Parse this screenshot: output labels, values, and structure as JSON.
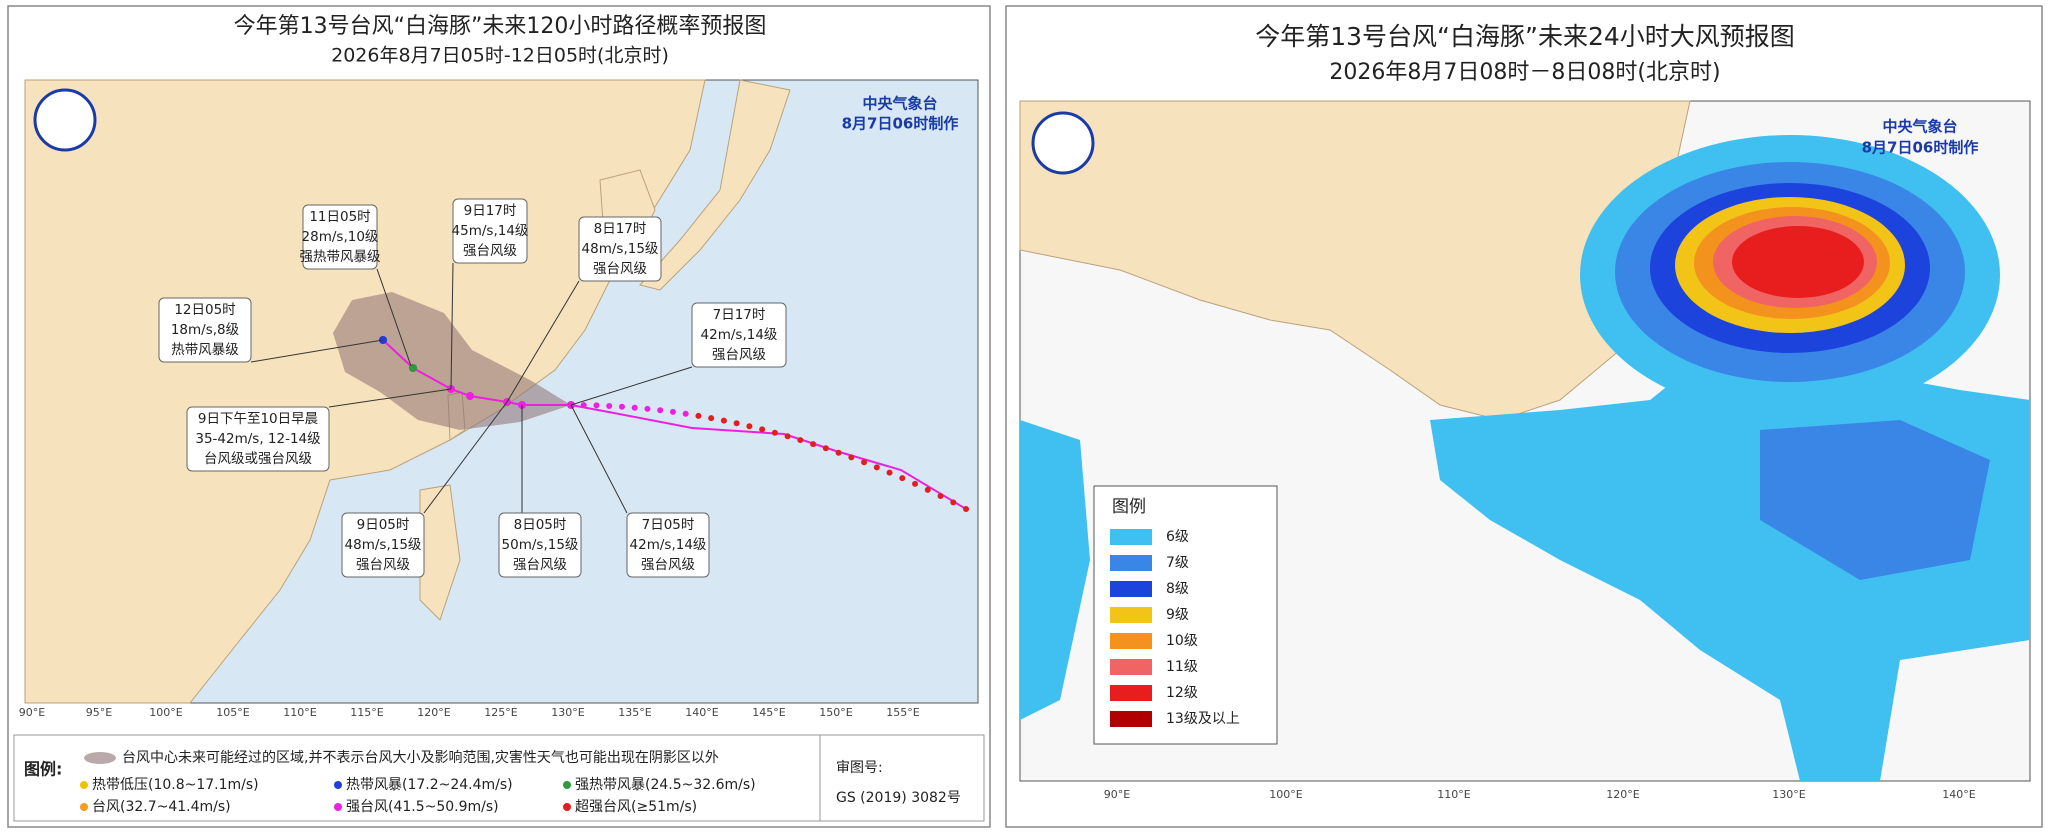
{
  "left": {
    "title": "今年第13号台风“白海豚”未来120小时路径概率预报图",
    "subtitle": "2026年8月7日05时-12日05时(北京时)",
    "agency": "中央气象台",
    "issued": "8月7日06时制作",
    "lon_ticks": [
      "90°E",
      "95°E",
      "100°E",
      "105°E",
      "110°E",
      "115°E",
      "120°E",
      "125°E",
      "130°E",
      "135°E",
      "140°E",
      "145°E",
      "150°E",
      "155°E"
    ],
    "callouts": [
      {
        "lines": [
          "11日05时",
          "28m/s,10级",
          "强热带风暴级"
        ]
      },
      {
        "lines": [
          "9日17时",
          "45m/s,14级",
          "强台风级"
        ]
      },
      {
        "lines": [
          "8日17时",
          "48m/s,15级",
          "强台风级"
        ]
      },
      {
        "lines": [
          "12日05时",
          "18m/s,8级",
          "热带风暴级"
        ]
      },
      {
        "lines": [
          "7日17时",
          "42m/s,14级",
          "强台风级"
        ]
      },
      {
        "lines": [
          "9日下午至10日早晨",
          "35-42m/s, 12-14级",
          "台风级或强台风级"
        ]
      },
      {
        "lines": [
          "9日05时",
          "48m/s,15级",
          "强台风级"
        ]
      },
      {
        "lines": [
          "8日05时",
          "50m/s,15级",
          "强台风级"
        ]
      },
      {
        "lines": [
          "7日05时",
          "42m/s,14级",
          "强台风级"
        ]
      }
    ],
    "legend": {
      "title": "图例:",
      "cone": "台风中心未来可能经过的区域,并不表示台风大小及影响范围,灾害性天气也可能出现在阴影区以外",
      "items": [
        {
          "label": "热带低压(10.8~17.1m/s)",
          "color": "#f2c200"
        },
        {
          "label": "热带风暴(17.2~24.4m/s)",
          "color": "#1f3fd8"
        },
        {
          "label": "强热带风暴(24.5~32.6m/s)",
          "color": "#2e9a3a"
        },
        {
          "label": "台风(32.7~41.4m/s)",
          "color": "#f59a23"
        },
        {
          "label": "强台风(41.5~50.9m/s)",
          "color": "#ee20e0"
        },
        {
          "label": "超强台风(≥51m/s)",
          "color": "#e02020"
        }
      ]
    },
    "approval": {
      "label": "审图号:",
      "number": "GS (2019) 3082号"
    }
  },
  "right": {
    "title": "今年第13号台风“白海豚”未来24小时大风预报图",
    "subtitle": "2026年8月7日08时－8日08时(北京时)",
    "agency": "中央气象台",
    "issued": "8月7日06时制作",
    "lon_ticks": [
      "90°E",
      "100°E",
      "110°E",
      "120°E",
      "130°E",
      "140°E"
    ],
    "legend": {
      "title": "图例",
      "items": [
        {
          "label": "6级",
          "color": "#3fc0f0"
        },
        {
          "label": "7级",
          "color": "#3a86e6"
        },
        {
          "label": "8级",
          "color": "#1c44dc"
        },
        {
          "label": "9级",
          "color": "#f2c418"
        },
        {
          "label": "10级",
          "color": "#f4921e"
        },
        {
          "label": "11级",
          "color": "#f06464"
        },
        {
          "label": "12级",
          "color": "#e81e1e"
        },
        {
          "label": "13级及以上",
          "color": "#b00000"
        }
      ]
    }
  }
}
